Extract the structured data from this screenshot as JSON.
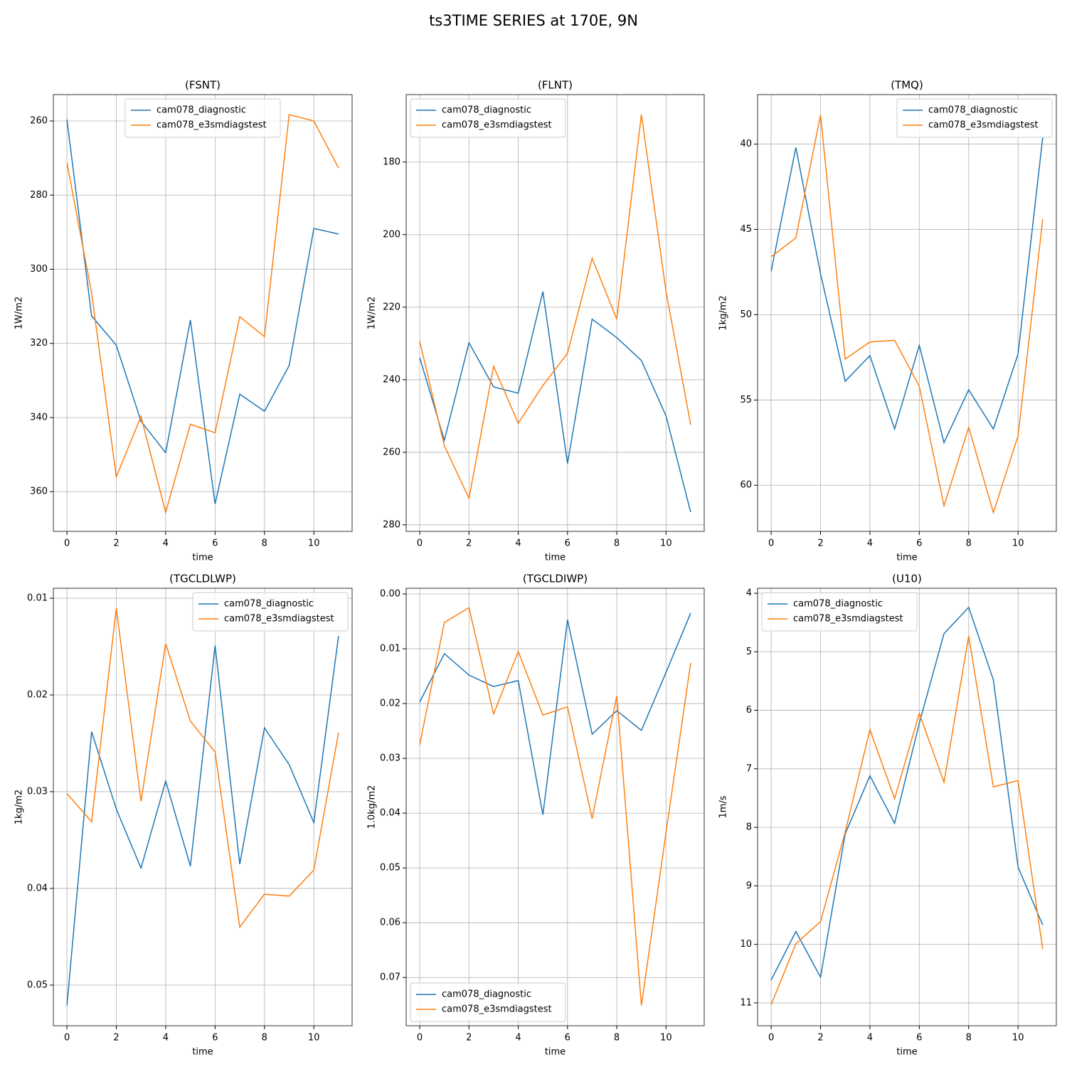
{
  "title": "ts3TIME SERIES at 170E, 9N",
  "chart_data": [
    {
      "type": "line",
      "title": "(FSNT)",
      "xlabel": "time",
      "ylabel": "1W/m2",
      "x": [
        0,
        1,
        2,
        3,
        4,
        5,
        6,
        7,
        8,
        9,
        10,
        11
      ],
      "series": [
        {
          "name": "cam078_diagnostic",
          "color": "#1f77b4",
          "values": [
            259.6,
            312.6,
            320.5,
            341.0,
            349.5,
            313.7,
            363.3,
            333.7,
            338.3,
            326.0,
            289.0,
            290.5
          ]
        },
        {
          "name": "cam078_e3smdiagstest",
          "color": "#ff7f0e",
          "values": [
            271.3,
            306.4,
            356.0,
            339.7,
            365.6,
            341.8,
            344.1,
            312.8,
            318.2,
            258.3,
            260.0,
            272.7
          ]
        }
      ],
      "xlim": [
        -0.55,
        11.55
      ],
      "ylim": [
        370.7,
        252.9
      ],
      "xticks": [
        0,
        2,
        4,
        6,
        8,
        10
      ],
      "yticks": [
        260,
        280,
        300,
        320,
        340,
        360
      ],
      "grid": true,
      "legend": "upper center"
    },
    {
      "type": "line",
      "title": "(FLNT)",
      "xlabel": "time",
      "ylabel": "1W/m2",
      "x": [
        0,
        1,
        2,
        3,
        4,
        5,
        6,
        7,
        8,
        9,
        10,
        11
      ],
      "series": [
        {
          "name": "cam078_diagnostic",
          "color": "#1f77b4",
          "values": [
            233.9,
            256.7,
            229.8,
            242.0,
            243.7,
            215.7,
            263.1,
            223.3,
            228.4,
            234.7,
            250.0,
            276.5
          ]
        },
        {
          "name": "cam078_e3smdiagstest",
          "color": "#ff7f0e",
          "values": [
            229.4,
            258.2,
            272.7,
            236.3,
            252.0,
            241.6,
            232.7,
            206.5,
            223.3,
            166.9,
            215.7,
            252.4
          ]
        }
      ],
      "xlim": [
        -0.55,
        11.55
      ],
      "ylim": [
        281.8,
        161.4
      ],
      "xticks": [
        0,
        2,
        4,
        6,
        8,
        10
      ],
      "yticks": [
        180,
        200,
        220,
        240,
        260,
        280
      ],
      "grid": true,
      "legend": "upper left"
    },
    {
      "type": "line",
      "title": "(TMQ)",
      "xlabel": "time",
      "ylabel": "1kg/m2",
      "x": [
        0,
        1,
        2,
        3,
        4,
        5,
        6,
        7,
        8,
        9,
        10,
        11
      ],
      "series": [
        {
          "name": "cam078_diagnostic",
          "color": "#1f77b4",
          "values": [
            47.46,
            40.2,
            47.6,
            53.9,
            52.4,
            56.7,
            51.8,
            57.5,
            54.4,
            56.7,
            52.3,
            39.6
          ]
        },
        {
          "name": "cam078_e3smdiagstest",
          "color": "#ff7f0e",
          "values": [
            46.6,
            45.5,
            38.3,
            52.6,
            51.6,
            51.5,
            54.2,
            61.2,
            56.6,
            61.6,
            57.1,
            44.4
          ]
        }
      ],
      "xlim": [
        -0.55,
        11.55
      ],
      "ylim": [
        62.7,
        37.1
      ],
      "xticks": [
        0,
        2,
        4,
        6,
        8,
        10
      ],
      "yticks": [
        40,
        45,
        50,
        55,
        60
      ],
      "grid": true,
      "legend": "upper right"
    },
    {
      "type": "line",
      "title": "(TGCLDLWP)",
      "xlabel": "time",
      "ylabel": "1kg/m2",
      "x": [
        0,
        1,
        2,
        3,
        4,
        5,
        6,
        7,
        8,
        9,
        10,
        11
      ],
      "series": [
        {
          "name": "cam078_diagnostic",
          "color": "#1f77b4",
          "values": [
            0.0521,
            0.0238,
            0.0318,
            0.0379,
            0.0289,
            0.0377,
            0.0149,
            0.0375,
            0.0234,
            0.0272,
            0.0332,
            0.0139
          ]
        },
        {
          "name": "cam078_e3smdiagstest",
          "color": "#ff7f0e",
          "values": [
            0.0302,
            0.0331,
            0.011,
            0.031,
            0.0147,
            0.0227,
            0.0259,
            0.044,
            0.0406,
            0.0408,
            0.0381,
            0.0239
          ]
        }
      ],
      "xlim": [
        -0.55,
        11.55
      ],
      "ylim": [
        0.0542,
        0.00897
      ],
      "xticks": [
        0,
        2,
        4,
        6,
        8,
        10
      ],
      "yticks": [
        0.01,
        0.02,
        0.03,
        0.04,
        0.05
      ],
      "grid": true,
      "legend": "upper right"
    },
    {
      "type": "line",
      "title": "(TGCLDIWP)",
      "xlabel": "time",
      "ylabel": "1.0kg/m2",
      "x": [
        0,
        1,
        2,
        3,
        4,
        5,
        6,
        7,
        8,
        9,
        10,
        11
      ],
      "series": [
        {
          "name": "cam078_diagnostic",
          "color": "#1f77b4",
          "values": [
            0.0197,
            0.0109,
            0.0148,
            0.0169,
            0.0158,
            0.0403,
            0.0047,
            0.0256,
            0.0213,
            0.0249,
            0.0143,
            0.0035
          ]
        },
        {
          "name": "cam078_e3smdiagstest",
          "color": "#ff7f0e",
          "values": [
            0.0275,
            0.0052,
            0.0025,
            0.0219,
            0.0105,
            0.0221,
            0.0206,
            0.041,
            0.0186,
            0.0751,
            0.0435,
            0.0126
          ]
        }
      ],
      "xlim": [
        -0.55,
        11.55
      ],
      "ylim": [
        0.0788,
        -0.00104
      ],
      "xticks": [
        0,
        2,
        4,
        6,
        8,
        10
      ],
      "yticks": [
        {
          "value": 0,
          "label": "0.00"
        },
        0.01,
        0.02,
        0.03,
        0.04,
        0.05,
        0.06,
        0.07
      ],
      "grid": true,
      "legend": "lower left"
    },
    {
      "type": "line",
      "title": "(U10)",
      "xlabel": "time",
      "ylabel": "1m/s",
      "x": [
        0,
        1,
        2,
        3,
        4,
        5,
        6,
        7,
        8,
        9,
        10,
        11
      ],
      "series": [
        {
          "name": "cam078_diagnostic",
          "color": "#1f77b4",
          "values": [
            10.61,
            9.78,
            10.56,
            8.11,
            7.12,
            7.93,
            6.22,
            4.69,
            4.24,
            5.48,
            8.68,
            9.67
          ]
        },
        {
          "name": "cam078_e3smdiagstest",
          "color": "#ff7f0e",
          "values": [
            11.03,
            9.99,
            9.61,
            8.08,
            6.33,
            7.51,
            6.05,
            7.23,
            4.73,
            7.31,
            7.2,
            10.08
          ]
        }
      ],
      "xlim": [
        -0.55,
        11.55
      ],
      "ylim": [
        11.39,
        3.915
      ],
      "xticks": [
        0,
        2,
        4,
        6,
        8,
        10
      ],
      "yticks": [
        4,
        5,
        6,
        7,
        8,
        9,
        10,
        11
      ],
      "grid": true,
      "legend": "upper left"
    }
  ]
}
